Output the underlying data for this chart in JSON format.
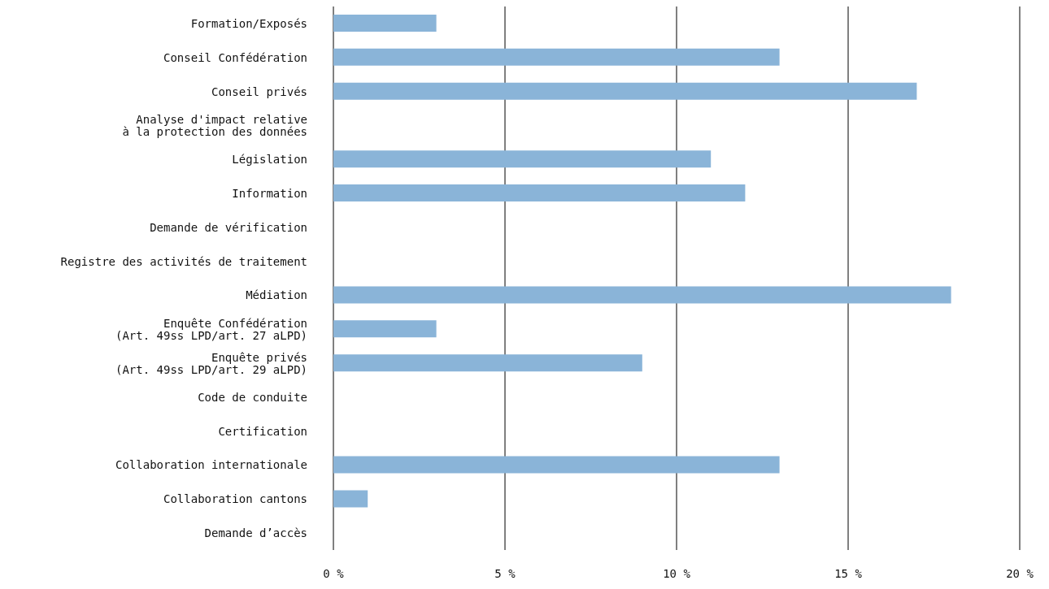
{
  "chart_data": {
    "type": "bar",
    "orientation": "horizontal",
    "categories": [
      "Formation/Exposés",
      "Conseil Confédération",
      "Conseil privés",
      "Analyse d'impact relative\nà la protection des données",
      "Législation",
      "Information",
      "Demande de vérification",
      "Registre des activités de traitement",
      "Médiation",
      "Enquête Confédération\n(Art. 49ss LPD/art. 27 aLPD)",
      "Enquête privés\n(Art. 49ss LPD/art. 29 aLPD)",
      "Code de conduite",
      "Certification",
      "Collaboration internationale",
      "Collaboration cantons",
      "Demande d’accès"
    ],
    "values": [
      3,
      13,
      17,
      0,
      11,
      12,
      0,
      0,
      18,
      3,
      9,
      0,
      0,
      13,
      1,
      0
    ],
    "color": "#8ab4d8",
    "xlim": [
      0,
      20
    ],
    "xticks": [
      {
        "value": 0,
        "label": "0 %"
      },
      {
        "value": 5,
        "label": "5 %"
      },
      {
        "value": 10,
        "label": "10 %"
      },
      {
        "value": 15,
        "label": "15 %"
      },
      {
        "value": 20,
        "label": "20 %"
      }
    ],
    "grid": "x"
  }
}
